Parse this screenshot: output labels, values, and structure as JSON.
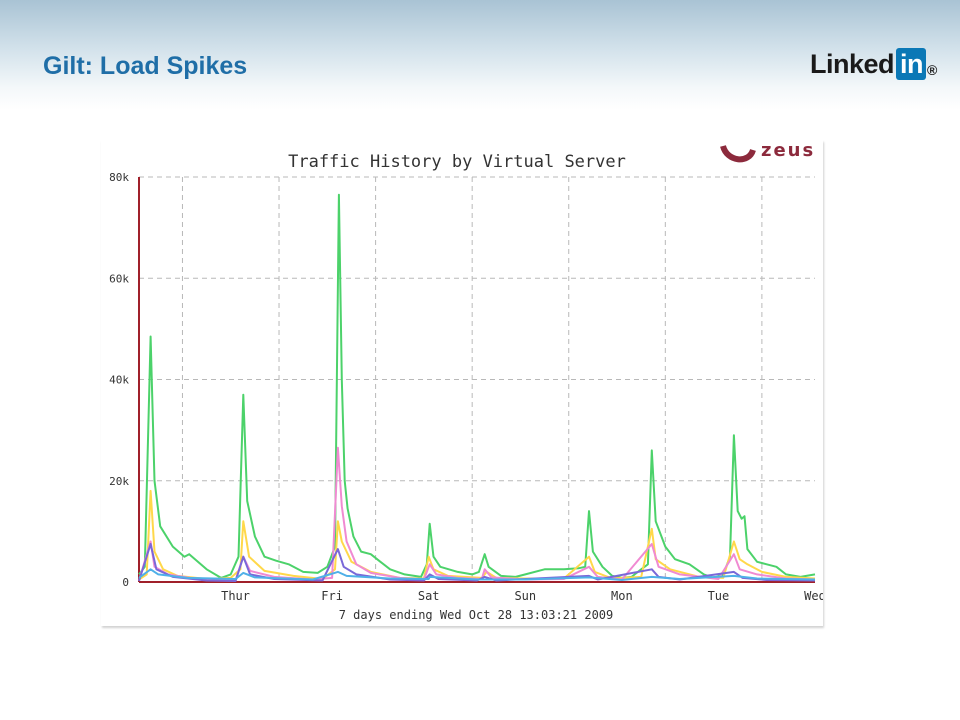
{
  "slide": {
    "title": "Gilt: Load Spikes"
  },
  "logo": {
    "word": "Linked",
    "box": "in",
    "mark": "®",
    "brand_color": "#0b78b6"
  },
  "vendor_logo": {
    "text": "zeus",
    "color": "#8c2a3c"
  },
  "chart_data": {
    "type": "line",
    "title": "Traffic History by Virtual Server",
    "xlabel": "7 days ending Wed Oct 28 13:03:21 2009",
    "ylabel": "",
    "ylim": [
      0,
      80000
    ],
    "y_ticks": [
      {
        "value": 0,
        "label": "0"
      },
      {
        "value": 20000,
        "label": "20k"
      },
      {
        "value": 40000,
        "label": "40k"
      },
      {
        "value": 60000,
        "label": "60k"
      },
      {
        "value": 80000,
        "label": "80k"
      }
    ],
    "xlim": [
      0,
      7
    ],
    "x_ticks": [
      {
        "value": 1,
        "label": "Thur"
      },
      {
        "value": 2,
        "label": "Fri"
      },
      {
        "value": 3,
        "label": "Sat"
      },
      {
        "value": 4,
        "label": "Sun"
      },
      {
        "value": 5,
        "label": "Mon"
      },
      {
        "value": 6,
        "label": "Tue"
      },
      {
        "value": 7,
        "label": "Wed"
      }
    ],
    "grid": true,
    "series": [
      {
        "color": "#4cd26a",
        "points": [
          [
            0,
            1500
          ],
          [
            0.06,
            3000
          ],
          [
            0.12,
            48500
          ],
          [
            0.16,
            20000
          ],
          [
            0.22,
            11000
          ],
          [
            0.35,
            7000
          ],
          [
            0.47,
            5000
          ],
          [
            0.52,
            5500
          ],
          [
            0.58,
            4500
          ],
          [
            0.7,
            2500
          ],
          [
            0.85,
            800
          ],
          [
            0.95,
            1500
          ],
          [
            1.03,
            5000
          ],
          [
            1.08,
            37000
          ],
          [
            1.12,
            16000
          ],
          [
            1.2,
            9000
          ],
          [
            1.3,
            5000
          ],
          [
            1.42,
            4200
          ],
          [
            1.55,
            3500
          ],
          [
            1.7,
            2000
          ],
          [
            1.85,
            1800
          ],
          [
            1.95,
            3000
          ],
          [
            2.03,
            7000
          ],
          [
            2.07,
            76500
          ],
          [
            2.1,
            40000
          ],
          [
            2.13,
            20000
          ],
          [
            2.16,
            14500
          ],
          [
            2.22,
            9000
          ],
          [
            2.3,
            6000
          ],
          [
            2.4,
            5500
          ],
          [
            2.5,
            4000
          ],
          [
            2.6,
            2500
          ],
          [
            2.75,
            1500
          ],
          [
            2.92,
            1000
          ],
          [
            2.98,
            3500
          ],
          [
            3.01,
            11500
          ],
          [
            3.05,
            5000
          ],
          [
            3.12,
            3000
          ],
          [
            3.3,
            2000
          ],
          [
            3.45,
            1500
          ],
          [
            3.52,
            2000
          ],
          [
            3.58,
            5500
          ],
          [
            3.62,
            3000
          ],
          [
            3.75,
            1200
          ],
          [
            3.9,
            1000
          ],
          [
            4.0,
            1500
          ],
          [
            4.2,
            2500
          ],
          [
            4.4,
            2500
          ],
          [
            4.55,
            2700
          ],
          [
            4.62,
            3000
          ],
          [
            4.66,
            14000
          ],
          [
            4.7,
            6000
          ],
          [
            4.8,
            3000
          ],
          [
            4.9,
            1200
          ],
          [
            5.0,
            800
          ],
          [
            5.1,
            1000
          ],
          [
            5.2,
            2500
          ],
          [
            5.27,
            3500
          ],
          [
            5.31,
            26000
          ],
          [
            5.35,
            12000
          ],
          [
            5.45,
            7000
          ],
          [
            5.55,
            4500
          ],
          [
            5.7,
            3500
          ],
          [
            5.85,
            1500
          ],
          [
            5.95,
            800
          ],
          [
            6.05,
            1500
          ],
          [
            6.12,
            5000
          ],
          [
            6.16,
            29000
          ],
          [
            6.2,
            14000
          ],
          [
            6.24,
            12500
          ],
          [
            6.27,
            13000
          ],
          [
            6.3,
            6500
          ],
          [
            6.4,
            4000
          ],
          [
            6.5,
            3500
          ],
          [
            6.6,
            3000
          ],
          [
            6.7,
            1500
          ],
          [
            6.85,
            1000
          ],
          [
            7.0,
            1500
          ]
        ]
      },
      {
        "color": "#ffd84a",
        "points": [
          [
            0,
            500
          ],
          [
            0.08,
            1500
          ],
          [
            0.12,
            18000
          ],
          [
            0.16,
            6000
          ],
          [
            0.25,
            2500
          ],
          [
            0.4,
            1200
          ],
          [
            0.7,
            600
          ],
          [
            0.95,
            800
          ],
          [
            1.05,
            2500
          ],
          [
            1.08,
            12000
          ],
          [
            1.14,
            5000
          ],
          [
            1.3,
            2200
          ],
          [
            1.6,
            1200
          ],
          [
            1.9,
            600
          ],
          [
            2.03,
            2500
          ],
          [
            2.06,
            12000
          ],
          [
            2.1,
            8000
          ],
          [
            2.2,
            4000
          ],
          [
            2.4,
            2000
          ],
          [
            2.7,
            800
          ],
          [
            2.95,
            700
          ],
          [
            3.0,
            5000
          ],
          [
            3.05,
            2500
          ],
          [
            3.2,
            1200
          ],
          [
            3.55,
            800
          ],
          [
            3.6,
            2000
          ],
          [
            3.7,
            800
          ],
          [
            4.0,
            700
          ],
          [
            4.4,
            700
          ],
          [
            4.66,
            5000
          ],
          [
            4.72,
            2000
          ],
          [
            4.9,
            700
          ],
          [
            5.2,
            1000
          ],
          [
            5.31,
            10500
          ],
          [
            5.35,
            4500
          ],
          [
            5.5,
            2500
          ],
          [
            5.8,
            1000
          ],
          [
            6.05,
            800
          ],
          [
            6.16,
            8000
          ],
          [
            6.22,
            4500
          ],
          [
            6.3,
            3500
          ],
          [
            6.45,
            2000
          ],
          [
            6.7,
            1000
          ],
          [
            7.0,
            700
          ]
        ]
      },
      {
        "color": "#f08ad2",
        "points": [
          [
            0,
            300
          ],
          [
            0.12,
            8000
          ],
          [
            0.16,
            3000
          ],
          [
            0.3,
            1500
          ],
          [
            0.6,
            600
          ],
          [
            1.0,
            400
          ],
          [
            1.08,
            5000
          ],
          [
            1.15,
            2200
          ],
          [
            1.4,
            1000
          ],
          [
            1.8,
            500
          ],
          [
            2.0,
            800
          ],
          [
            2.06,
            26500
          ],
          [
            2.1,
            15000
          ],
          [
            2.15,
            8000
          ],
          [
            2.25,
            3500
          ],
          [
            2.4,
            1800
          ],
          [
            2.7,
            800
          ],
          [
            2.95,
            500
          ],
          [
            3.01,
            3500
          ],
          [
            3.08,
            1500
          ],
          [
            3.3,
            800
          ],
          [
            3.55,
            600
          ],
          [
            3.58,
            2500
          ],
          [
            3.65,
            900
          ],
          [
            4.0,
            500
          ],
          [
            4.4,
            600
          ],
          [
            4.66,
            3000
          ],
          [
            4.75,
            1000
          ],
          [
            5.0,
            500
          ],
          [
            5.31,
            7500
          ],
          [
            5.38,
            3000
          ],
          [
            5.6,
            1500
          ],
          [
            6.0,
            600
          ],
          [
            6.16,
            5500
          ],
          [
            6.22,
            2500
          ],
          [
            6.4,
            1500
          ],
          [
            6.7,
            700
          ],
          [
            7.0,
            500
          ]
        ]
      },
      {
        "color": "#7a68d8",
        "points": [
          [
            0,
            200
          ],
          [
            0.12,
            7500
          ],
          [
            0.18,
            2500
          ],
          [
            0.35,
            1000
          ],
          [
            0.7,
            300
          ],
          [
            1.0,
            200
          ],
          [
            1.08,
            5000
          ],
          [
            1.15,
            1500
          ],
          [
            1.4,
            600
          ],
          [
            1.9,
            300
          ],
          [
            2.06,
            6500
          ],
          [
            2.12,
            3000
          ],
          [
            2.25,
            1500
          ],
          [
            2.6,
            500
          ],
          [
            2.95,
            300
          ],
          [
            3.01,
            1500
          ],
          [
            3.1,
            600
          ],
          [
            3.5,
            300
          ],
          [
            3.58,
            1000
          ],
          [
            3.7,
            300
          ],
          [
            4.66,
            1200
          ],
          [
            4.75,
            500
          ],
          [
            5.31,
            2500
          ],
          [
            5.38,
            1000
          ],
          [
            5.6,
            500
          ],
          [
            6.16,
            2000
          ],
          [
            6.25,
            800
          ],
          [
            6.5,
            400
          ],
          [
            7.0,
            300
          ]
        ]
      },
      {
        "color": "#4fb0e8",
        "points": [
          [
            0,
            800
          ],
          [
            0.12,
            2500
          ],
          [
            0.2,
            1500
          ],
          [
            0.5,
            800
          ],
          [
            1.0,
            600
          ],
          [
            1.08,
            1800
          ],
          [
            1.2,
            900
          ],
          [
            1.8,
            500
          ],
          [
            2.06,
            2000
          ],
          [
            2.15,
            1200
          ],
          [
            2.6,
            700
          ],
          [
            3.0,
            600
          ],
          [
            3.01,
            1000
          ],
          [
            3.5,
            500
          ],
          [
            4.0,
            500
          ],
          [
            4.66,
            900
          ],
          [
            5.0,
            400
          ],
          [
            5.31,
            1000
          ],
          [
            5.6,
            600
          ],
          [
            6.16,
            1200
          ],
          [
            6.4,
            700
          ],
          [
            7.0,
            500
          ]
        ]
      }
    ]
  }
}
